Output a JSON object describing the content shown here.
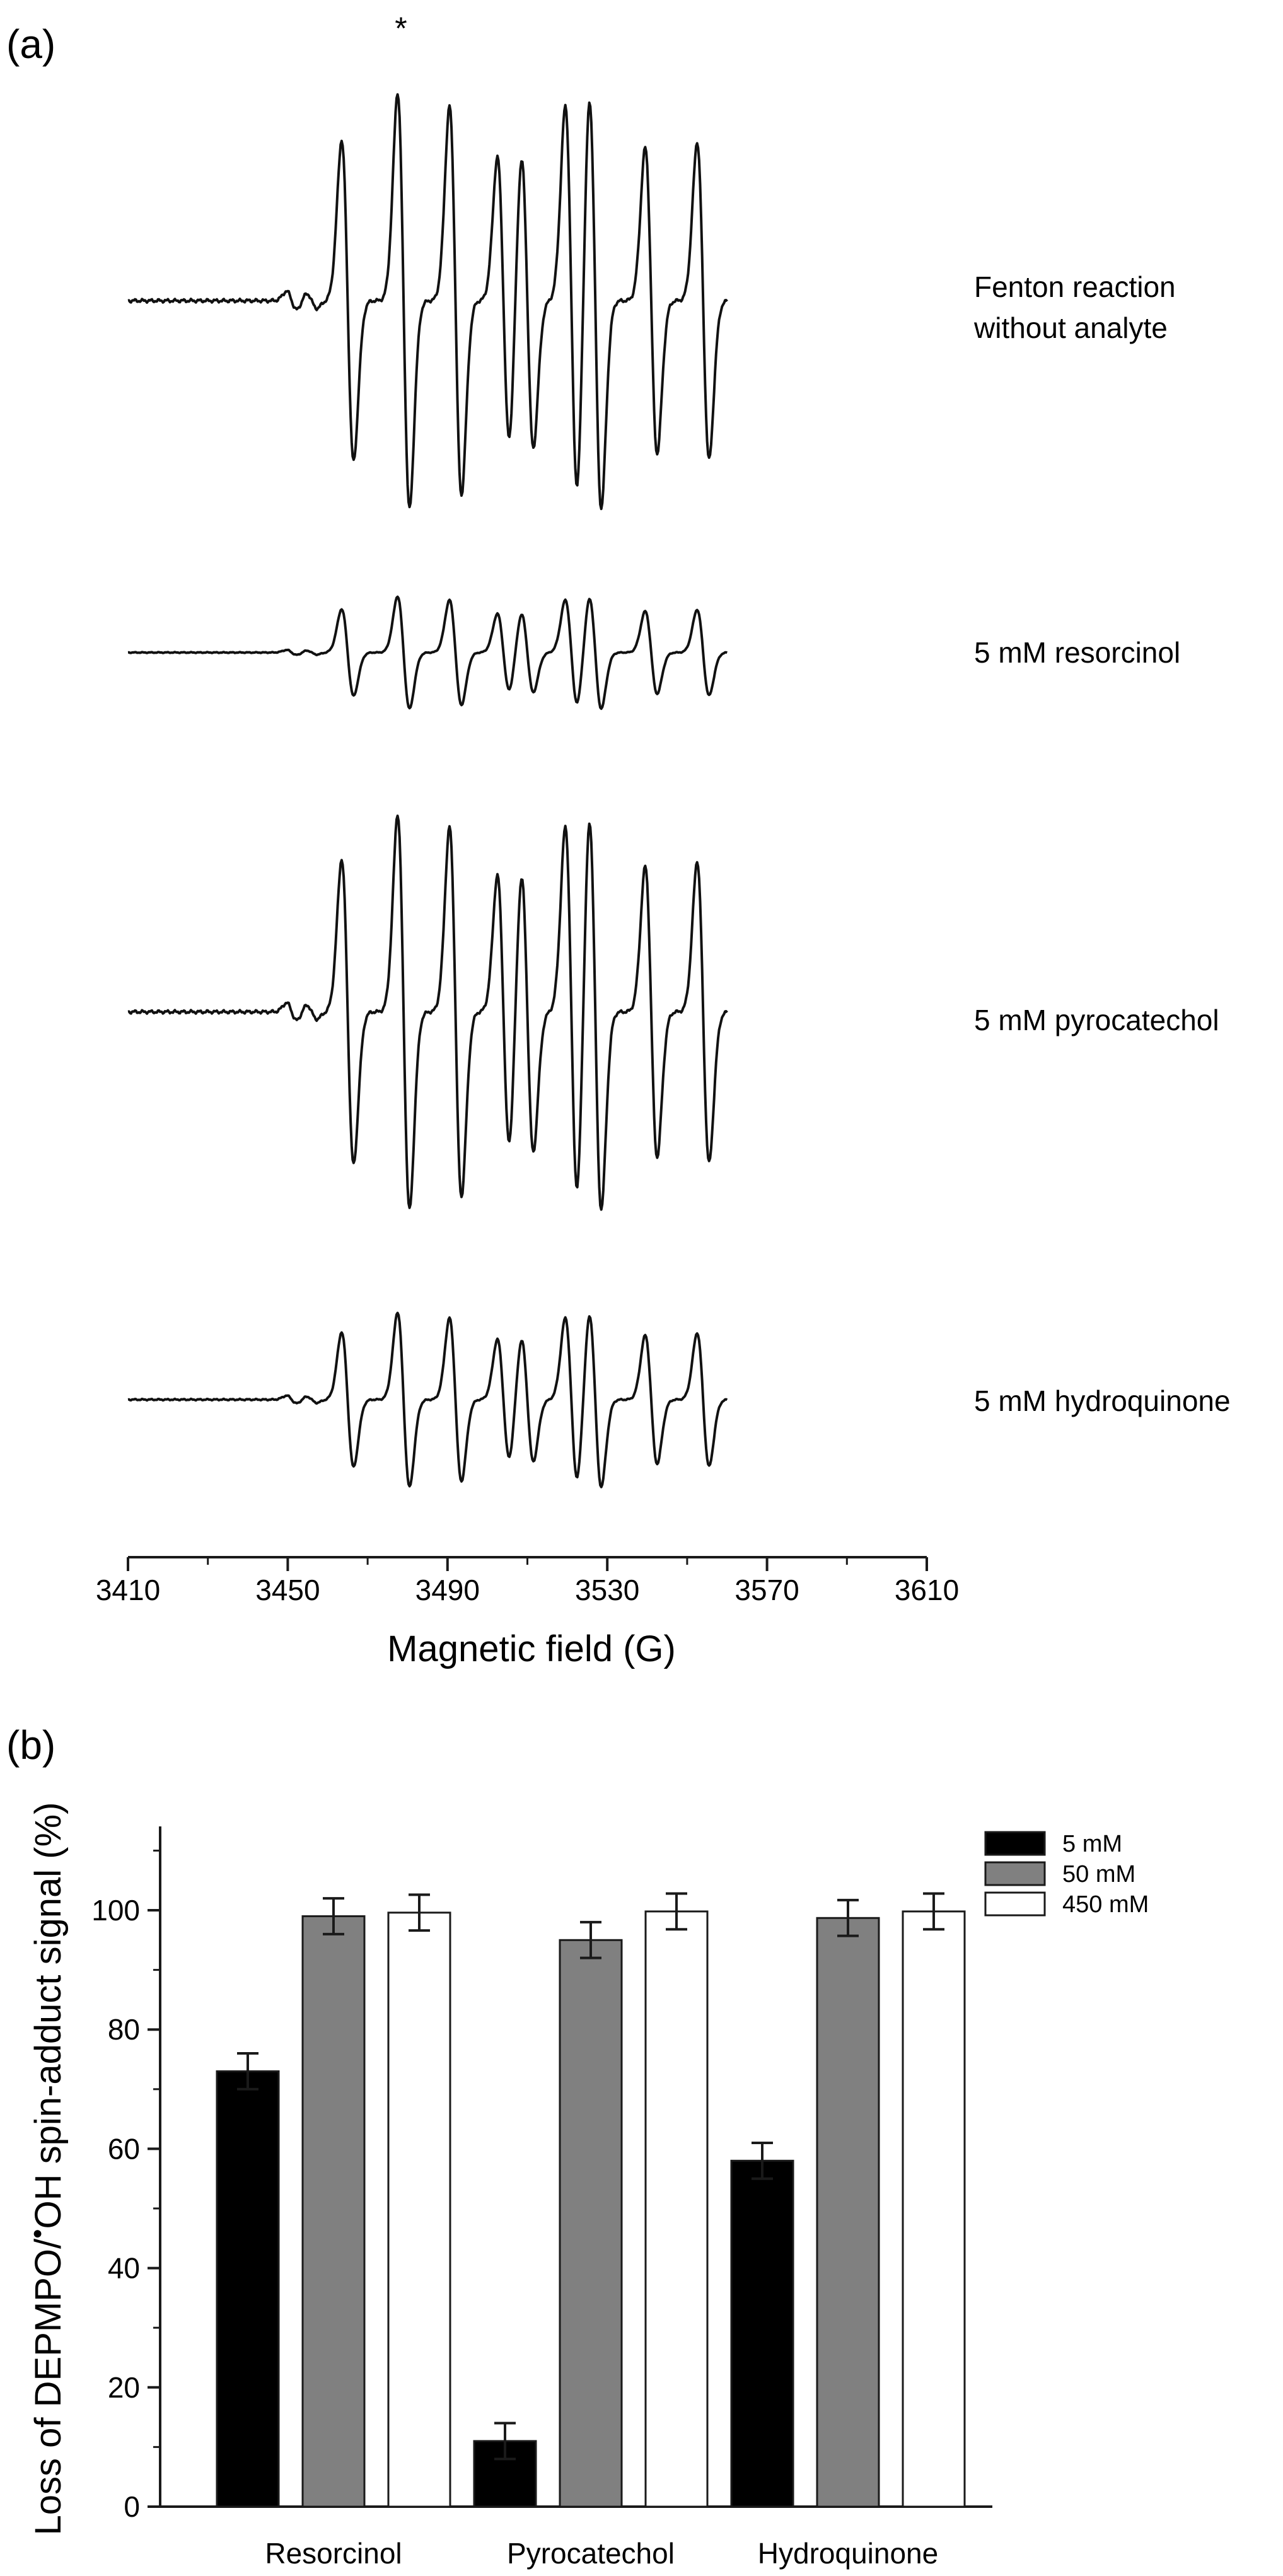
{
  "chart_data": [
    {
      "panel": "(a)",
      "type": "line",
      "xlabel": "Magnetic field (G)",
      "ylabel": "",
      "xlim": [
        3410,
        3610
      ],
      "xticks": [
        "3410",
        "3450",
        "3490",
        "3530",
        "3570",
        "3610"
      ],
      "annotation": "*",
      "series": [
        {
          "name": "Fenton reaction without analyte",
          "label_lines": [
            "Fenton reaction",
            "without analyte"
          ],
          "amplitude": 1.0,
          "lines_G": [
            3465,
            3479,
            3492,
            3504,
            3510,
            3521,
            3527,
            3541,
            3554
          ],
          "heights": [
            0.85,
            1.1,
            1.03,
            0.76,
            0.78,
            1.03,
            1.1,
            0.81,
            0.84
          ]
        },
        {
          "name": "5 mM resorcinol",
          "label_lines": [
            "5 mM resorcinol"
          ],
          "amplitude": 0.27,
          "lines_G": [
            3465,
            3479,
            3492,
            3504,
            3510,
            3521,
            3527,
            3541,
            3554
          ],
          "heights": [
            0.85,
            1.1,
            1.03,
            0.76,
            0.78,
            1.03,
            1.1,
            0.81,
            0.84
          ]
        },
        {
          "name": "5 mM pyrocatechol",
          "label_lines": [
            "5 mM pyrocatechol"
          ],
          "amplitude": 0.95,
          "lines_G": [
            3465,
            3479,
            3492,
            3504,
            3510,
            3521,
            3527,
            3541,
            3554
          ],
          "heights": [
            0.85,
            1.1,
            1.03,
            0.76,
            0.78,
            1.03,
            1.1,
            0.81,
            0.84
          ]
        },
        {
          "name": "5 mM hydroquinone",
          "label_lines": [
            "5 mM hydroquinone"
          ],
          "amplitude": 0.42,
          "lines_G": [
            3465,
            3479,
            3492,
            3504,
            3510,
            3521,
            3527,
            3541,
            3554
          ],
          "heights": [
            0.85,
            1.1,
            1.03,
            0.76,
            0.78,
            1.03,
            1.1,
            0.81,
            0.84
          ]
        }
      ]
    },
    {
      "panel": "(b)",
      "type": "bar",
      "ylabel": "Loss of DEPMPO/OH spin-adduct signal (%)",
      "ylabel_parts": {
        "before": "Loss of DEPMPO/",
        "after": "OH spin-adduct signal (%)",
        "radical_dot": "•"
      },
      "categories": [
        "Resorcinol",
        "Pyrocatechol",
        "Hydroquinone"
      ],
      "ylim": [
        0,
        110
      ],
      "yticks": [
        "0",
        "20",
        "40",
        "60",
        "80",
        "100"
      ],
      "legend_position": "top-right",
      "series": [
        {
          "name": "5 mM",
          "color": "#000000",
          "values": [
            73,
            11,
            58
          ],
          "errors": [
            3,
            3,
            3
          ]
        },
        {
          "name": "50 mM",
          "color": "#808080",
          "values": [
            99,
            95,
            98.7
          ],
          "errors": [
            3,
            3,
            3
          ]
        },
        {
          "name": "450 mM",
          "color": "#ffffff",
          "values": [
            99.6,
            99.8,
            99.8
          ],
          "errors": [
            3,
            3,
            3
          ]
        }
      ]
    }
  ]
}
